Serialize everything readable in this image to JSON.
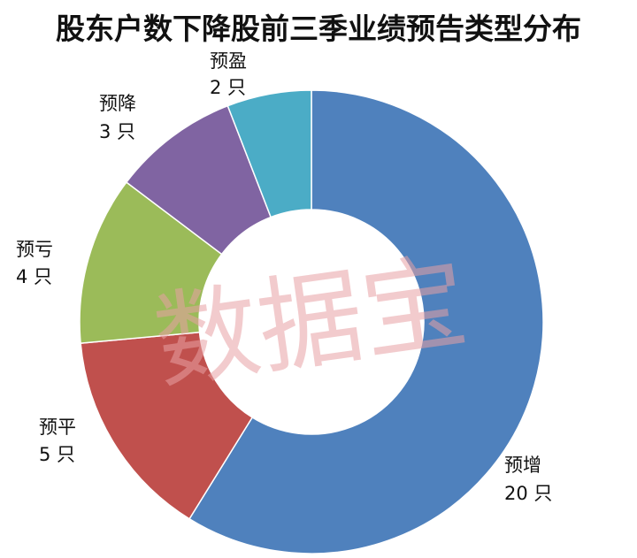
{
  "chart_data": {
    "type": "pie",
    "title": "股东户数下降股前三季业绩预告类型分布",
    "style": "donut",
    "unit": "只",
    "slices": [
      {
        "label": "预增",
        "value": 20,
        "value_text": "20 只",
        "color": "#4f81bd"
      },
      {
        "label": "预平",
        "value": 5,
        "value_text": "5 只",
        "color": "#c0504d"
      },
      {
        "label": "预亏",
        "value": 4,
        "value_text": "4 只",
        "color": "#9bbb59"
      },
      {
        "label": "预降",
        "value": 3,
        "value_text": "3 只",
        "color": "#8064a2"
      },
      {
        "label": "预盈",
        "value": 2,
        "value_text": "2 只",
        "color": "#4bacc6"
      }
    ]
  },
  "watermark": {
    "text": "数据宝"
  }
}
